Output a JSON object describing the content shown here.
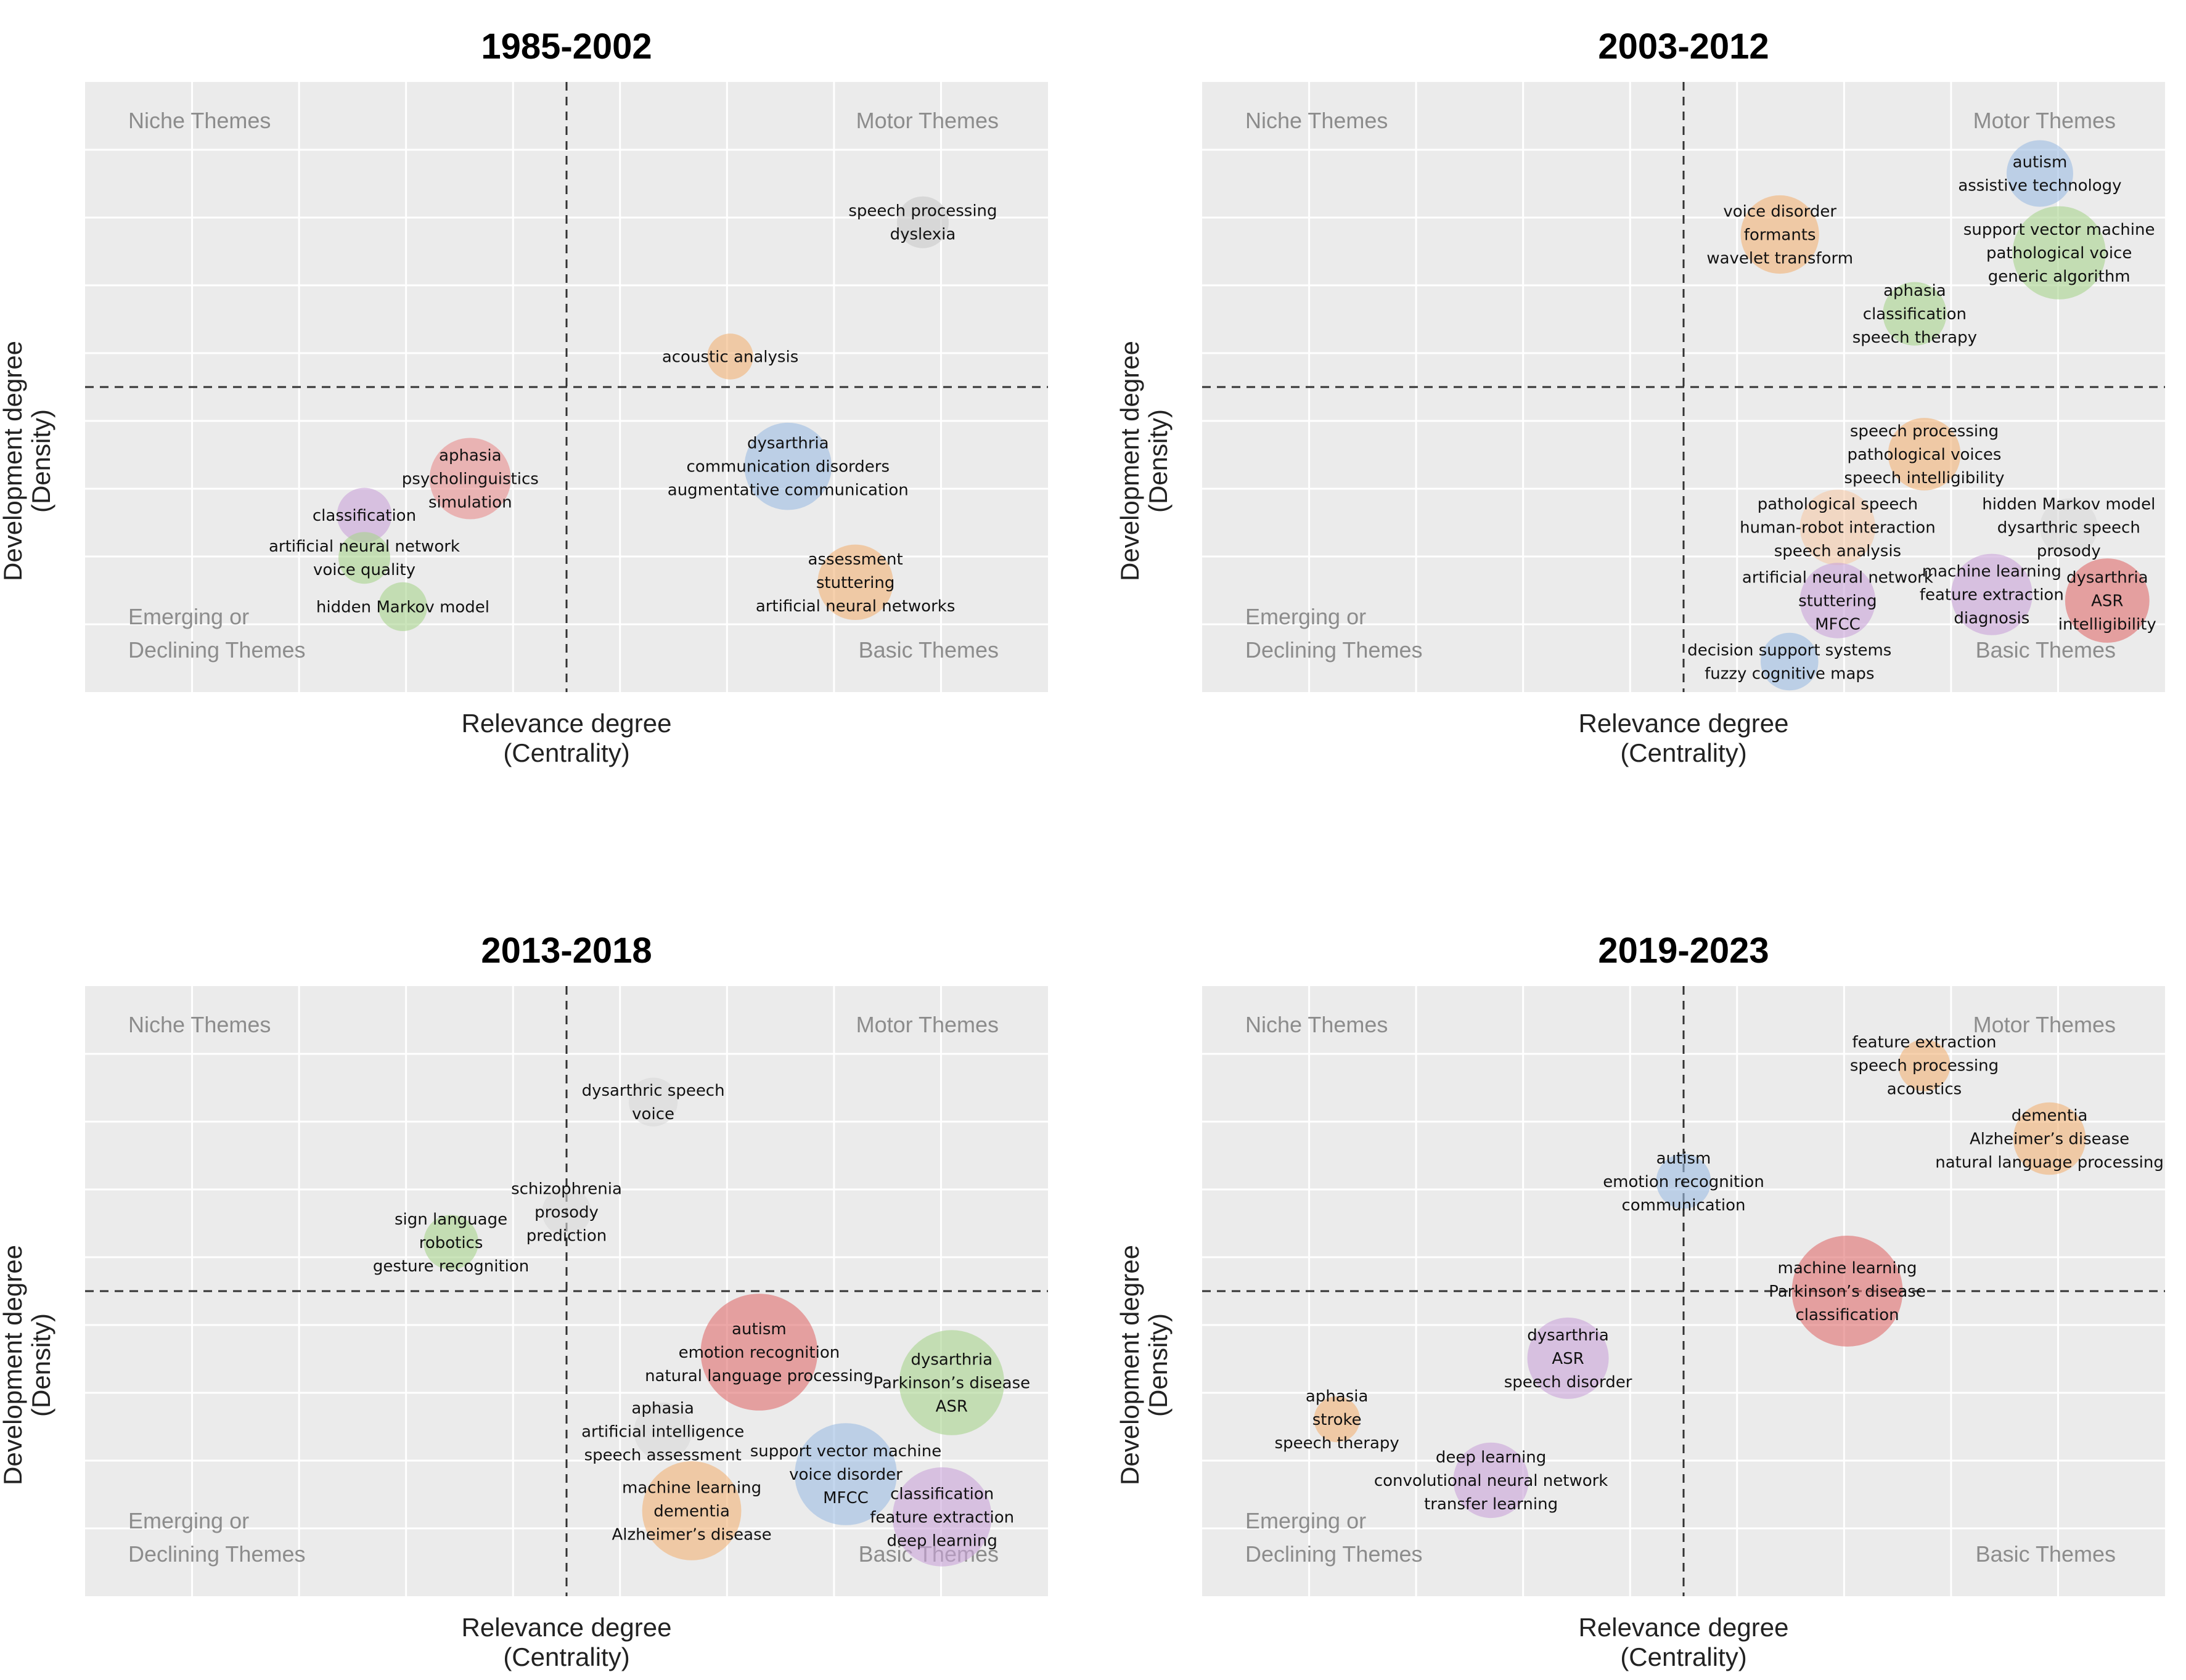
{
  "chart_data": [
    {
      "type": "scatter",
      "title": "1985-2002",
      "xlabel": [
        "Relevance degree",
        "(Centrality)"
      ],
      "ylabel": [
        "Development degree",
        "(Density)"
      ],
      "quadrants": {
        "top_left": [
          "Niche Themes"
        ],
        "top_right": [
          "Motor Themes"
        ],
        "bottom_left": [
          "Emerging or",
          "Declining Themes"
        ],
        "bottom_right": [
          "Basic Themes"
        ]
      },
      "xlim": [
        0,
        1
      ],
      "ylim": [
        0,
        1
      ],
      "xcut": 0.5,
      "ycut": 0.5,
      "grid": true,
      "clusters": [
        {
          "labels": [
            "speech processing",
            "dyslexia"
          ],
          "x": 0.87,
          "y": 0.77,
          "size": 0.5,
          "color": "#c9c9c9"
        },
        {
          "labels": [
            "acoustic analysis"
          ],
          "x": 0.67,
          "y": 0.55,
          "size": 0.4,
          "color": "#f2b277"
        },
        {
          "labels": [
            "dysarthria",
            "communication disorders",
            "augmentative communication"
          ],
          "x": 0.73,
          "y": 0.37,
          "size": 1.1,
          "color": "#9dbde3"
        },
        {
          "labels": [
            "aphasia",
            "psycholinguistics",
            "simulation"
          ],
          "x": 0.4,
          "y": 0.35,
          "size": 1.0,
          "color": "#e88e8e"
        },
        {
          "labels": [
            "classification"
          ],
          "x": 0.29,
          "y": 0.29,
          "size": 0.55,
          "color": "#c9a4d8"
        },
        {
          "labels": [
            "artificial neural network",
            "voice quality"
          ],
          "x": 0.29,
          "y": 0.22,
          "size": 0.5,
          "color": "#a9d48e"
        },
        {
          "labels": [
            "hidden Markov model"
          ],
          "x": 0.33,
          "y": 0.14,
          "size": 0.45,
          "color": "#a9d48e"
        },
        {
          "labels": [
            "assessment",
            "stuttering",
            "artificial neural networks"
          ],
          "x": 0.8,
          "y": 0.18,
          "size": 0.9,
          "color": "#f2b277"
        }
      ]
    },
    {
      "type": "scatter",
      "title": "2003-2012",
      "xlabel": [
        "Relevance degree",
        "(Centrality)"
      ],
      "ylabel": [
        "Development degree",
        "(Density)"
      ],
      "quadrants": {
        "top_left": [
          "Niche Themes"
        ],
        "top_right": [
          "Motor Themes"
        ],
        "bottom_left": [
          "Emerging or",
          "Declining Themes"
        ],
        "bottom_right": [
          "Basic Themes"
        ]
      },
      "xlim": [
        0,
        1
      ],
      "ylim": [
        0,
        1
      ],
      "xcut": 0.5,
      "ycut": 0.5,
      "grid": true,
      "clusters": [
        {
          "labels": [
            "autism",
            "assistive technology"
          ],
          "x": 0.87,
          "y": 0.85,
          "size": 0.75,
          "color": "#9dbde3"
        },
        {
          "labels": [
            "voice disorder",
            "formants",
            "wavelet transform"
          ],
          "x": 0.6,
          "y": 0.75,
          "size": 0.95,
          "color": "#f2b277"
        },
        {
          "labels": [
            "support vector machine",
            "pathological voice",
            "generic algorithm"
          ],
          "x": 0.89,
          "y": 0.72,
          "size": 1.2,
          "color": "#a9d48e"
        },
        {
          "labels": [
            "aphasia",
            "classification",
            "speech therapy"
          ],
          "x": 0.74,
          "y": 0.62,
          "size": 0.7,
          "color": "#a9d48e"
        },
        {
          "labels": [
            "speech processing",
            "pathological voices",
            "speech intelligibility"
          ],
          "x": 0.75,
          "y": 0.39,
          "size": 0.85,
          "color": "#f2b277"
        },
        {
          "labels": [
            "pathological speech",
            "human-robot interaction",
            "speech analysis"
          ],
          "x": 0.66,
          "y": 0.27,
          "size": 0.9,
          "color": "#f5c9a8"
        },
        {
          "labels": [
            "hidden Markov model",
            "dysarthric speech",
            "prosody"
          ],
          "x": 0.9,
          "y": 0.27,
          "size": 0.6,
          "color": "#d8d8d8"
        },
        {
          "labels": [
            "artificial neural network",
            "stuttering",
            "MFCC"
          ],
          "x": 0.66,
          "y": 0.15,
          "size": 0.9,
          "color": "#c9a4d8"
        },
        {
          "labels": [
            "machine learning",
            "feature extraction",
            "diagnosis"
          ],
          "x": 0.82,
          "y": 0.16,
          "size": 1.0,
          "color": "#c9a4d8"
        },
        {
          "labels": [
            "dysarthria",
            "ASR",
            "intelligibility"
          ],
          "x": 0.94,
          "y": 0.15,
          "size": 1.05,
          "color": "#e06d6d"
        },
        {
          "labels": [
            "decision support systems",
            "fuzzy cognitive maps"
          ],
          "x": 0.61,
          "y": 0.05,
          "size": 0.6,
          "color": "#9dbde3"
        }
      ]
    },
    {
      "type": "scatter",
      "title": "2013-2018",
      "xlabel": [
        "Relevance degree",
        "(Centrality)"
      ],
      "ylabel": [
        "Development degree",
        "(Density)"
      ],
      "quadrants": {
        "top_left": [
          "Niche Themes"
        ],
        "top_right": [
          "Motor Themes"
        ],
        "bottom_left": [
          "Emerging or",
          "Declining Themes"
        ],
        "bottom_right": [
          "Basic Themes"
        ]
      },
      "xlim": [
        0,
        1
      ],
      "ylim": [
        0,
        1
      ],
      "xcut": 0.5,
      "ycut": 0.5,
      "grid": true,
      "clusters": [
        {
          "labels": [
            "dysarthric speech",
            "voice"
          ],
          "x": 0.59,
          "y": 0.81,
          "size": 0.45,
          "color": "#d8d8d8"
        },
        {
          "labels": [
            "schizophrenia",
            "prosody",
            "prediction"
          ],
          "x": 0.5,
          "y": 0.63,
          "size": 0.45,
          "color": "#d8d8d8"
        },
        {
          "labels": [
            "sign language",
            "robotics",
            "gesture recognition"
          ],
          "x": 0.38,
          "y": 0.58,
          "size": 0.55,
          "color": "#a9d48e"
        },
        {
          "labels": [
            "autism",
            "emotion recognition",
            "natural language processing"
          ],
          "x": 0.7,
          "y": 0.4,
          "size": 1.6,
          "color": "#e06d6d"
        },
        {
          "labels": [
            "dysarthria",
            "Parkinson’s disease",
            "ASR"
          ],
          "x": 0.9,
          "y": 0.35,
          "size": 1.4,
          "color": "#a9d48e"
        },
        {
          "labels": [
            "aphasia",
            "artificial intelligence",
            "speech assessment"
          ],
          "x": 0.6,
          "y": 0.27,
          "size": 0.6,
          "color": "#d8d8d8"
        },
        {
          "labels": [
            "support vector machine",
            "voice disorder",
            "MFCC"
          ],
          "x": 0.79,
          "y": 0.2,
          "size": 1.35,
          "color": "#9dbde3"
        },
        {
          "labels": [
            "machine learning",
            "dementia",
            "Alzheimer’s disease"
          ],
          "x": 0.63,
          "y": 0.14,
          "size": 1.3,
          "color": "#f2b277"
        },
        {
          "labels": [
            "classification",
            "feature extraction",
            "deep learning"
          ],
          "x": 0.89,
          "y": 0.13,
          "size": 1.3,
          "color": "#c9a4d8"
        }
      ]
    },
    {
      "type": "scatter",
      "title": "2019-2023",
      "xlabel": [
        "Relevance degree",
        "(Centrality)"
      ],
      "ylabel": [
        "Development degree",
        "(Density)"
      ],
      "quadrants": {
        "top_left": [
          "Niche Themes"
        ],
        "top_right": [
          "Motor Themes"
        ],
        "bottom_left": [
          "Emerging or",
          "Declining Themes"
        ],
        "bottom_right": [
          "Basic Themes"
        ]
      },
      "xlim": [
        0,
        1
      ],
      "ylim": [
        0,
        1
      ],
      "xcut": 0.5,
      "ycut": 0.5,
      "grid": true,
      "clusters": [
        {
          "labels": [
            "feature extraction",
            "speech processing",
            "acoustics"
          ],
          "x": 0.75,
          "y": 0.87,
          "size": 0.5,
          "color": "#f2b277"
        },
        {
          "labels": [
            "dementia",
            "Alzheimer’s disease",
            "natural language processing"
          ],
          "x": 0.88,
          "y": 0.75,
          "size": 0.85,
          "color": "#f2b277"
        },
        {
          "labels": [
            "autism",
            "emotion recognition",
            "communication"
          ],
          "x": 0.5,
          "y": 0.68,
          "size": 0.55,
          "color": "#9dbde3"
        },
        {
          "labels": [
            "machine learning",
            "Parkinson’s disease",
            "classification"
          ],
          "x": 0.67,
          "y": 0.5,
          "size": 1.5,
          "color": "#e06d6d"
        },
        {
          "labels": [
            "dysarthria",
            "ASR",
            "speech disorder"
          ],
          "x": 0.38,
          "y": 0.39,
          "size": 1.0,
          "color": "#c9a4d8"
        },
        {
          "labels": [
            "aphasia",
            "stroke",
            "speech therapy"
          ],
          "x": 0.14,
          "y": 0.29,
          "size": 0.4,
          "color": "#f2b277"
        },
        {
          "labels": [
            "deep learning",
            "convolutional neural network",
            "transfer learning"
          ],
          "x": 0.3,
          "y": 0.19,
          "size": 0.9,
          "color": "#c9a4d8"
        }
      ]
    }
  ]
}
